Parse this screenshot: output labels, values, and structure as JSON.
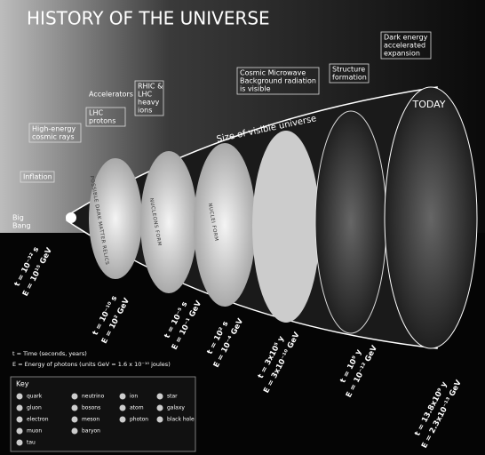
{
  "title": "HISTORY OF THE UNIVERSE",
  "callouts": [
    {
      "lines": [
        "Dark energy",
        "accelerated",
        "expansion"
      ]
    },
    {
      "lines": [
        "Structure",
        "formation"
      ]
    },
    {
      "lines": [
        "Cosmic Microwave",
        "Background radiation",
        "is visible"
      ]
    },
    {
      "lines": [
        "RHIC &",
        "LHC",
        "heavy",
        "ions"
      ]
    },
    {
      "lines": [
        "Accelerators"
      ]
    },
    {
      "lines": [
        "LHC",
        "protons"
      ]
    },
    {
      "lines": [
        "High-energy",
        "cosmic rays"
      ]
    },
    {
      "lines": [
        "Inflation"
      ]
    },
    {
      "lines": [
        "Big",
        "Bang"
      ]
    }
  ],
  "size_label": "Size of visible universe",
  "today": "TODAY",
  "ellipse_labels": [
    "POSSIBLE DARK MATTER RELICS",
    "NUCLEONS FORM",
    "NUCLEI FORM"
  ],
  "epochs": [
    {
      "t": "t = 10⁻³² s",
      "E": "E = 10¹⁵ GeV"
    },
    {
      "t": "t = 10⁻¹⁰ s",
      "E": "E = 10² GeV"
    },
    {
      "t": "t = 10⁻⁵ s",
      "E": "E = 10⁻¹ GeV"
    },
    {
      "t": "t = 10² s",
      "E": "E = 10⁻⁴ GeV"
    },
    {
      "t": "t = 3x10⁵ y",
      "E": "E = 3x10⁻¹⁰ GeV"
    },
    {
      "t": "t = 10⁹ y",
      "E": "E = 10⁻¹² GeV"
    },
    {
      "t": "t = 13.8x10⁹ y",
      "E": "E = 2.3x10⁻¹³ GeV"
    }
  ],
  "legend": {
    "t": "t = Time (seconds, years)",
    "E": "E = Energy of photons (units GeV = 1.6 x 10⁻¹⁰ joules)"
  },
  "key": {
    "title": "Key",
    "items": [
      "quark",
      "gluon",
      "electron",
      "muon",
      "tau",
      "neutrino",
      "bosons",
      "meson",
      "baryon",
      "ion",
      "atom",
      "photon",
      "star",
      "galaxy",
      "black hole"
    ]
  }
}
